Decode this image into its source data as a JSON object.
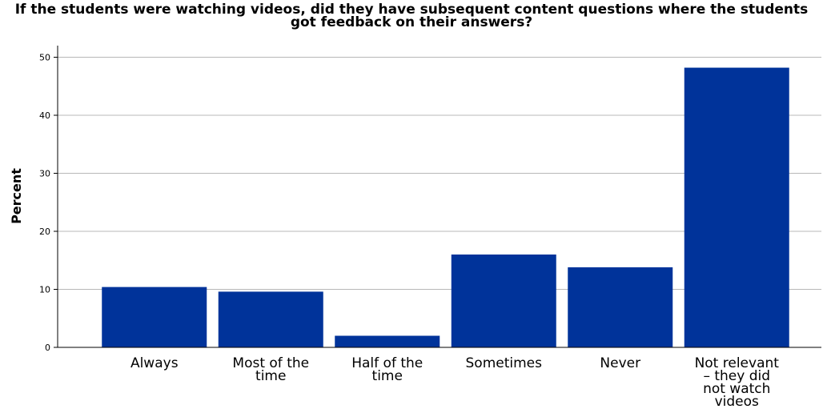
{
  "chart_data": {
    "type": "bar",
    "title_lines": [
      "If the students were watching videos, did they have subsequent content questions where the students",
      "got feedback on their answers?"
    ],
    "xlabel": "",
    "ylabel": "Percent",
    "ylim": [
      0,
      52
    ],
    "yticks": [
      0,
      10,
      20,
      30,
      40,
      50
    ],
    "grid": true,
    "legend": "none",
    "bar_color": "#00339a",
    "categories": [
      [
        "Always"
      ],
      [
        "Most of the",
        "time"
      ],
      [
        "Half of the",
        "time"
      ],
      [
        "Sometimes"
      ],
      [
        "Never"
      ],
      [
        "Not relevant",
        "– they did",
        "not watch",
        "videos"
      ]
    ],
    "values": [
      10.4,
      9.6,
      2.0,
      16.0,
      13.8,
      48.2
    ]
  }
}
